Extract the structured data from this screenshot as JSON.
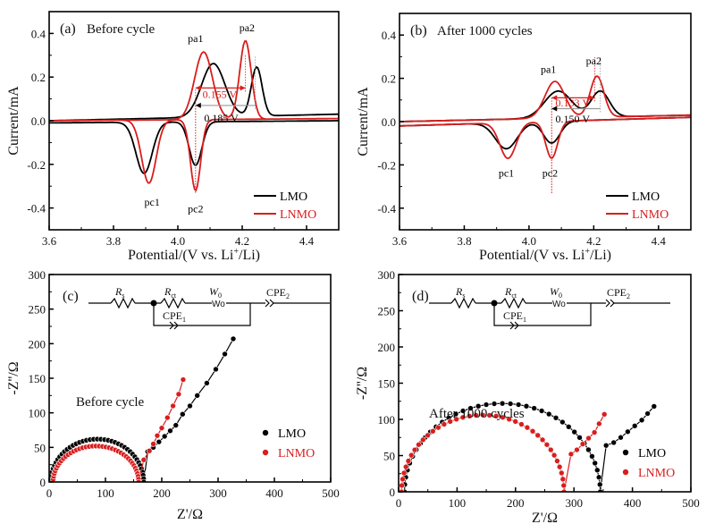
{
  "colors": {
    "LMO": "#000000",
    "LNMO": "#d81e1e",
    "gray": "#9a9a9a"
  },
  "chart_data": [
    {
      "id": "a",
      "type": "line",
      "panel_label": "(a)",
      "title": "Before cycle",
      "xlabel": "Potential/(V vs. Li+/Li)",
      "xlabel_parts": {
        "pre": "Potential/(V vs. Li",
        "sup": "+",
        "post": "/Li)"
      },
      "ylabel": "Current/mA",
      "xlim": [
        3.6,
        4.5
      ],
      "ylim": [
        -0.5,
        0.5
      ],
      "xticks": [
        3.6,
        3.8,
        4.0,
        4.2,
        4.4
      ],
      "xtick_labels": [
        "3.6",
        "3.8",
        "4.0",
        "4.2",
        "4.4"
      ],
      "yticks": [
        -0.4,
        -0.2,
        0.0,
        0.2,
        0.4
      ],
      "ytick_labels": [
        "-0.4",
        "-0.2",
        "0.0",
        "0.2",
        "0.4"
      ],
      "legend": {
        "position": "bottom-right",
        "entries": [
          "LMO",
          "LNMO"
        ]
      },
      "series": [
        {
          "name": "LMO",
          "anodic": {
            "base": [
              [
                3.6,
                0.0
              ],
              [
                4.5,
                0.03
              ]
            ],
            "peaks": [
              [
                4.11,
                0.245,
                0.065
              ],
              [
                4.245,
                0.225,
                0.03
              ]
            ]
          },
          "cathodic": {
            "base": [
              [
                3.6,
                -0.01
              ],
              [
                4.5,
                0.0
              ]
            ],
            "peaks": [
              [
                3.895,
                -0.235,
                0.045
              ],
              [
                4.055,
                -0.2,
                0.035
              ]
            ]
          }
        },
        {
          "name": "LNMO",
          "anodic": {
            "base": [
              [
                3.6,
                0.0
              ],
              [
                4.5,
                0.01
              ]
            ],
            "peaks": [
              [
                4.08,
                0.31,
                0.05
              ],
              [
                4.21,
                0.36,
                0.032
              ]
            ]
          },
          "cathodic": {
            "base": [
              [
                3.6,
                0.0
              ],
              [
                4.5,
                0.01
              ]
            ],
            "peaks": [
              [
                3.91,
                -0.29,
                0.04
              ],
              [
                4.055,
                -0.325,
                0.028
              ]
            ]
          }
        }
      ],
      "annotations": [
        {
          "text": "pa1",
          "x": 4.055,
          "y": 0.36,
          "color": "LMO"
        },
        {
          "text": "pa2",
          "x": 4.215,
          "y": 0.41,
          "color": "LMO"
        },
        {
          "text": "pc1",
          "x": 3.92,
          "y": -0.39,
          "color": "LMO"
        },
        {
          "text": "pc2",
          "x": 4.055,
          "y": -0.42,
          "color": "LMO"
        },
        {
          "text": "0.155 V",
          "x": 4.13,
          "y": 0.105,
          "color": "LNMO"
        },
        {
          "text": "0.185 V",
          "x": 4.135,
          "y": -0.005,
          "color": "LMO"
        }
      ],
      "markers": [
        {
          "series": "LNMO",
          "from": 4.055,
          "to": 4.21,
          "y": 0.15,
          "label": "0.155 V"
        },
        {
          "series": "LMO",
          "from": 4.055,
          "to": 4.24,
          "y": 0.07,
          "label": "0.185 V"
        }
      ]
    },
    {
      "id": "b",
      "type": "line",
      "panel_label": "(b)",
      "title": "After 1000 cycles",
      "xlabel": "Potential/(V vs. Li+/Li)",
      "xlabel_parts": {
        "pre": "Potential/(V vs. Li",
        "sup": "+",
        "post": "/Li)"
      },
      "ylabel": "Current/mA",
      "xlim": [
        3.6,
        4.5
      ],
      "ylim": [
        -0.5,
        0.5
      ],
      "xticks": [
        3.6,
        3.8,
        4.0,
        4.2,
        4.4
      ],
      "xtick_labels": [
        "3.6",
        "3.8",
        "4.0",
        "4.2",
        "4.4"
      ],
      "yticks": [
        -0.4,
        -0.2,
        0.0,
        0.2,
        0.4
      ],
      "ytick_labels": [
        "-0.4",
        "-0.2",
        "0.0",
        "0.2",
        "0.4"
      ],
      "legend": {
        "position": "bottom-right",
        "entries": [
          "LMO",
          "LNMO"
        ]
      },
      "series": [
        {
          "name": "LMO",
          "anodic": {
            "base": [
              [
                3.6,
                0.0
              ],
              [
                4.5,
                0.03
              ]
            ],
            "peaks": [
              [
                4.09,
                0.125,
                0.075
              ],
              [
                4.22,
                0.12,
                0.05
              ]
            ]
          },
          "cathodic": {
            "base": [
              [
                3.6,
                -0.02
              ],
              [
                4.5,
                0.02
              ]
            ],
            "peaks": [
              [
                3.93,
                -0.12,
                0.06
              ],
              [
                4.07,
                -0.1,
                0.045
              ]
            ]
          }
        },
        {
          "name": "LNMO",
          "anodic": {
            "base": [
              [
                3.6,
                0.0
              ],
              [
                4.5,
                0.03
              ]
            ],
            "peaks": [
              [
                4.08,
                0.17,
                0.055
              ],
              [
                4.21,
                0.19,
                0.038
              ]
            ]
          },
          "cathodic": {
            "base": [
              [
                3.6,
                -0.02
              ],
              [
                4.5,
                0.02
              ]
            ],
            "peaks": [
              [
                3.935,
                -0.165,
                0.045
              ],
              [
                4.07,
                -0.17,
                0.033
              ]
            ]
          }
        }
      ],
      "annotations": [
        {
          "text": "pa1",
          "x": 4.06,
          "y": 0.225,
          "color": "LMO"
        },
        {
          "text": "pa2",
          "x": 4.2,
          "y": 0.265,
          "color": "LMO"
        },
        {
          "text": "pc1",
          "x": 3.93,
          "y": -0.255,
          "color": "LMO"
        },
        {
          "text": "pc2",
          "x": 4.065,
          "y": -0.255,
          "color": "LMO"
        },
        {
          "text": "0.133 V",
          "x": 4.135,
          "y": 0.07,
          "color": "LNMO"
        },
        {
          "text": "0.150 V",
          "x": 4.135,
          "y": -0.005,
          "color": "LMO"
        }
      ],
      "markers": [
        {
          "series": "LNMO",
          "from": 4.07,
          "to": 4.203,
          "y": 0.11,
          "label": "0.133 V"
        },
        {
          "series": "LMO",
          "from": 4.07,
          "to": 4.22,
          "y": 0.06,
          "label": "0.150 V"
        }
      ]
    },
    {
      "id": "c",
      "type": "scatter",
      "panel_label": "(c)",
      "title": "Before cycle",
      "xlabel": "Z'/Ω",
      "ylabel": "-Z''/Ω",
      "xlim": [
        0,
        500
      ],
      "ylim": [
        0,
        300
      ],
      "xticks": [
        0,
        100,
        200,
        300,
        400,
        500
      ],
      "xtick_labels": [
        "0",
        "100",
        "200",
        "300",
        "400",
        "500"
      ],
      "yticks": [
        0,
        50,
        100,
        150,
        200,
        250,
        300
      ],
      "ytick_labels": [
        "0",
        "50",
        "100",
        "150",
        "200",
        "250",
        "300"
      ],
      "legend": {
        "position": "right",
        "entries": [
          "LMO",
          "LNMO"
        ]
      },
      "series": [
        {
          "name": "LMO",
          "x0": 3,
          "arc_width": 165,
          "arc_height": 62,
          "tail_slope": 1.25,
          "tail_end": 335,
          "dense": 40,
          "tail_points": [
            [
              175,
              44
            ],
            [
              185,
              50
            ],
            [
              195,
              58
            ],
            [
              205,
              66
            ],
            [
              215,
              74
            ],
            [
              225,
              82
            ],
            [
              237,
              98
            ],
            [
              250,
              110
            ],
            [
              263,
              125
            ],
            [
              280,
              143
            ],
            [
              296,
              163
            ],
            [
              312,
              185
            ],
            [
              327,
              207
            ]
          ]
        },
        {
          "name": "LNMO",
          "x0": 7,
          "arc_width": 152,
          "arc_height": 52,
          "tail_slope": 1.75,
          "tail_end": 240,
          "dense": 40,
          "tail_points": [
            [
              168,
              32
            ],
            [
              178,
              45
            ],
            [
              185,
              55
            ],
            [
              192,
              67
            ],
            [
              200,
              78
            ],
            [
              210,
              93
            ],
            [
              220,
              110
            ],
            [
              230,
              127
            ],
            [
              238,
              148
            ]
          ]
        }
      ],
      "circuit": {
        "elements": [
          "R_s",
          "R_ct",
          "W_0",
          "CPE_2",
          "CPE_1"
        ],
        "labels": {
          "Rs": "R",
          "Rs_sub": "s",
          "Rct": "R",
          "Rct_sub": "ct",
          "W0": "W",
          "W0_sub": "0",
          "Wo_glyph": "Wo",
          "CPE2": "CPE",
          "CPE2_sub": "2",
          "CPE1": "CPE",
          "CPE1_sub": "1"
        }
      }
    },
    {
      "id": "d",
      "type": "scatter",
      "panel_label": "(d)",
      "title": "After 1000 cycles",
      "xlabel": "Z'/Ω",
      "ylabel": "-Z''/Ω",
      "xlim": [
        0,
        500
      ],
      "ylim": [
        0,
        300
      ],
      "xticks": [
        0,
        100,
        200,
        300,
        400,
        500
      ],
      "xtick_labels": [
        "0",
        "100",
        "200",
        "300",
        "400",
        "500"
      ],
      "yticks": [
        0,
        50,
        100,
        150,
        200,
        250,
        300
      ],
      "ytick_labels": [
        "0",
        "50",
        "100",
        "150",
        "200",
        "250",
        "300"
      ],
      "legend": {
        "position": "bottom-right",
        "entries": [
          "LMO",
          "LNMO"
        ]
      },
      "series": [
        {
          "name": "LMO",
          "x0": 10,
          "arc_width": 335,
          "arc_height": 122,
          "tail_slope": 0.6,
          "tail_end": 437,
          "dense": 38,
          "tail_points": [
            [
              355,
              64
            ],
            [
              368,
              68
            ],
            [
              380,
              75
            ],
            [
              392,
              83
            ],
            [
              404,
              91
            ],
            [
              416,
              99
            ],
            [
              426,
              108
            ],
            [
              437,
              118
            ]
          ]
        },
        {
          "name": "LNMO",
          "x0": 5,
          "arc_width": 278,
          "arc_height": 106,
          "tail_slope": 0.95,
          "tail_end": 352,
          "dense": 38,
          "tail_points": [
            [
              295,
              52
            ],
            [
              305,
              58
            ],
            [
              315,
              66
            ],
            [
              325,
              74
            ],
            [
              335,
              82
            ],
            [
              343,
              94
            ],
            [
              352,
              107
            ]
          ]
        }
      ],
      "circuit": {
        "elements": [
          "R_s",
          "R_ct",
          "W_0",
          "CPE_2",
          "CPE_1"
        ],
        "labels": {
          "Rs": "R",
          "Rs_sub": "s",
          "Rct": "R",
          "Rct_sub": "ct",
          "W0": "W",
          "W0_sub": "0",
          "Wo_glyph": "Wo",
          "CPE2": "CPE",
          "CPE2_sub": "2",
          "CPE1": "CPE",
          "CPE1_sub": "1"
        }
      }
    }
  ]
}
